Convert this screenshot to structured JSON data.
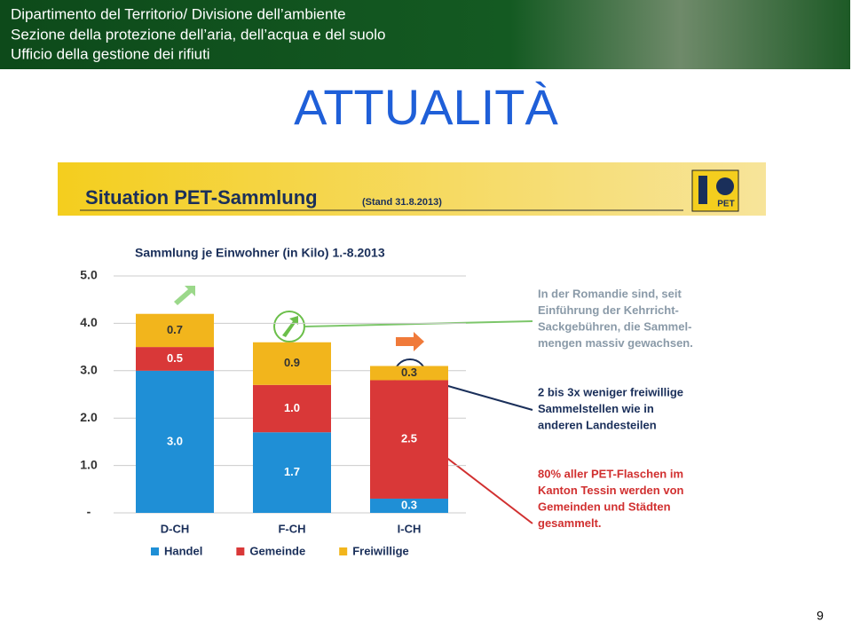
{
  "header": {
    "lines": [
      "Dipartimento del Territorio/ Divisione dell’ambiente",
      "Sezione della protezione dell’aria, dell’acqua e del suolo",
      "Ufficio della gestione dei rifiuti"
    ]
  },
  "slide_title": "ATTUALITÀ",
  "banner": {
    "title": "Situation PET-Sammlung",
    "stand": "(Stand 31.8.2013)",
    "logo": "PET"
  },
  "chart_data": {
    "type": "stacked_bar",
    "title": "Sammlung je Einwohner (in Kilo) 1.-8.2013",
    "categories": [
      "D-CH",
      "F-CH",
      "I-CH"
    ],
    "series": [
      {
        "name": "Handel",
        "color": "#1f8fd6",
        "values": [
          3.0,
          1.7,
          0.3
        ],
        "value_labels": [
          "3.0",
          "1.7",
          "0.3"
        ]
      },
      {
        "name": "Gemeinde",
        "color": "#d93838",
        "values": [
          0.5,
          1.0,
          2.5
        ],
        "value_labels": [
          "0.5",
          "1.0",
          "2.5"
        ]
      },
      {
        "name": "Freiwillige",
        "color": "#f2b51c",
        "values": [
          0.7,
          0.9,
          0.3
        ],
        "value_labels": [
          "0.7",
          "0.9",
          "0.3"
        ]
      }
    ],
    "ylim": [
      0,
      5
    ],
    "yticks": [
      {
        "value": 0,
        "label": "-"
      },
      {
        "value": 1,
        "label": "1.0"
      },
      {
        "value": 2,
        "label": "2.0"
      },
      {
        "value": 3,
        "label": "3.0"
      },
      {
        "value": 4,
        "label": "4.0"
      },
      {
        "value": 5,
        "label": "5.0"
      }
    ],
    "grid": true,
    "annotations": [
      {
        "lines": [
          "In der Romandie sind, seit",
          "Einführung der Kehrricht-",
          "Sackgebühren, die Sammel-",
          "mengen massiv gewachsen."
        ],
        "color": "#8a9aa8"
      },
      {
        "lines": [
          "2 bis 3x weniger freiwillige",
          "Sammelstellen wie in",
          "anderen Landesteilen"
        ],
        "color": "#1a2f5a"
      },
      {
        "lines": [
          "80% aller PET-Flaschen im",
          "Kanton Tessin werden von",
          "Gemeinden und Städten",
          "gesammelt."
        ],
        "color": "#d13030"
      }
    ]
  },
  "page_number": "9"
}
